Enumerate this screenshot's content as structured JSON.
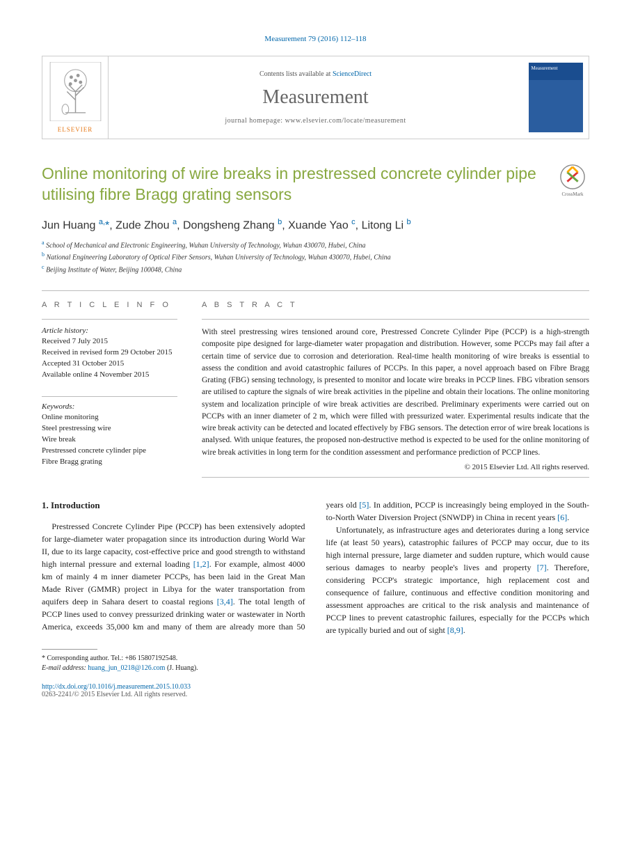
{
  "top_reference": "Measurement 79 (2016) 112–118",
  "header": {
    "contents_avail_pre": "Contents lists available at ",
    "contents_avail_link": "ScienceDirect",
    "journal_name": "Measurement",
    "homepage_label": "journal homepage: www.elsevier.com/locate/measurement",
    "publisher": "ELSEVIER"
  },
  "article": {
    "title": "Online monitoring of wire breaks in prestressed concrete cylinder pipe utilising fibre Bragg grating sensors",
    "crossmark_label": "CrossMark",
    "authors_html": "Jun Huang <span class='sup'>a,</span><span class='star'>*</span>, Zude Zhou <span class='sup'>a</span>, Dongsheng Zhang <span class='sup'>b</span>, Xuande Yao <span class='sup'>c</span>, Litong Li <span class='sup'>b</span>",
    "affiliations": [
      {
        "mark": "a",
        "text": "School of Mechanical and Electronic Engineering, Wuhan University of Technology, Wuhan 430070, Hubei, China"
      },
      {
        "mark": "b",
        "text": "National Engineering Laboratory of Optical Fiber Sensors, Wuhan University of Technology, Wuhan 430070, Hubei, China"
      },
      {
        "mark": "c",
        "text": "Beijing Institute of Water, Beijing 100048, China"
      }
    ]
  },
  "info": {
    "heading": "A R T I C L E   I N F O",
    "history_label": "Article history:",
    "history": [
      "Received 7 July 2015",
      "Received in revised form 29 October 2015",
      "Accepted 31 October 2015",
      "Available online 4 November 2015"
    ],
    "keywords_label": "Keywords:",
    "keywords": [
      "Online monitoring",
      "Steel prestressing wire",
      "Wire break",
      "Prestressed concrete cylinder pipe",
      "Fibre Bragg grating"
    ]
  },
  "abstract": {
    "heading": "A B S T R A C T",
    "text": "With steel prestressing wires tensioned around core, Prestressed Concrete Cylinder Pipe (PCCP) is a high-strength composite pipe designed for large-diameter water propagation and distribution. However, some PCCPs may fail after a certain time of service due to corrosion and deterioration. Real-time health monitoring of wire breaks is essential to assess the condition and avoid catastrophic failures of PCCPs. In this paper, a novel approach based on Fibre Bragg Grating (FBG) sensing technology, is presented to monitor and locate wire breaks in PCCP lines. FBG vibration sensors are utilised to capture the signals of wire break activities in the pipeline and obtain their locations. The online monitoring system and localization principle of wire break activities are described. Preliminary experiments were carried out on PCCPs with an inner diameter of 2 m, which were filled with pressurized water. Experimental results indicate that the wire break activity can be detected and located effectively by FBG sensors. The detection error of wire break locations is analysed. With unique features, the proposed non-destructive method is expected to be used for the online monitoring of wire break activities in long term for the condition assessment and performance prediction of PCCP lines.",
    "copyright": "© 2015 Elsevier Ltd. All rights reserved."
  },
  "body": {
    "intro_heading": "1. Introduction",
    "para1_pre": "Prestressed Concrete Cylinder Pipe (PCCP) has been extensively adopted for large-diameter water propagation since its introduction during World War II, due to its large capacity, cost-effective price and good strength to withstand high internal pressure and external loading ",
    "ref12": "[1,2]",
    "para1_mid1": ". For example, almost 4000 km of mainly 4 m inner diameter PCCPs, has been laid in the Great Man Made River (GMMR) project in Libya for the water transportation from aquifers deep in Sahara desert to coastal regions ",
    "ref34": "[3,4]",
    "para1_mid2": ". The total length of PCCP lines used to convey pressurized drinking water or wastewater in North America, exceeds 35,000 km and many of them are already more than 50 years old ",
    "ref5": "[5]",
    "para1_mid3": ". In addition, PCCP is increasingly being employed in the South-to-North Water Diversion Project (SNWDP) in China in recent years ",
    "ref6": "[6]",
    "para1_end": ".",
    "para2_pre": "Unfortunately, as infrastructure ages and deteriorates during a long service life (at least 50 years), catastrophic failures of PCCP may occur, due to its high internal pressure, large diameter and sudden rupture, which would cause serious damages to nearby people's lives and property ",
    "ref7": "[7]",
    "para2_mid": ". Therefore, considering PCCP's strategic importance, high replacement cost and consequence of failure, continuous and effective condition monitoring and assessment approaches are critical to the risk analysis and maintenance of PCCP lines to prevent catastrophic failures, especially for the PCCPs which are typically buried and out of sight ",
    "ref89": "[8,9]",
    "para2_end": "."
  },
  "footer": {
    "corr_label": "* Corresponding author. Tel.: +86 15807192548.",
    "email_label": "E-mail address: ",
    "email": "huang_jun_0218@126.com",
    "email_suffix": " (J. Huang).",
    "doi": "http://dx.doi.org/10.1016/j.measurement.2015.10.033",
    "issn": "0263-2241/© 2015 Elsevier Ltd. All rights reserved."
  },
  "colors": {
    "link": "#0066aa",
    "title_green": "#88a840",
    "elsevier_orange": "#e67817",
    "text": "#222222",
    "muted": "#666666",
    "border": "#cccccc"
  }
}
